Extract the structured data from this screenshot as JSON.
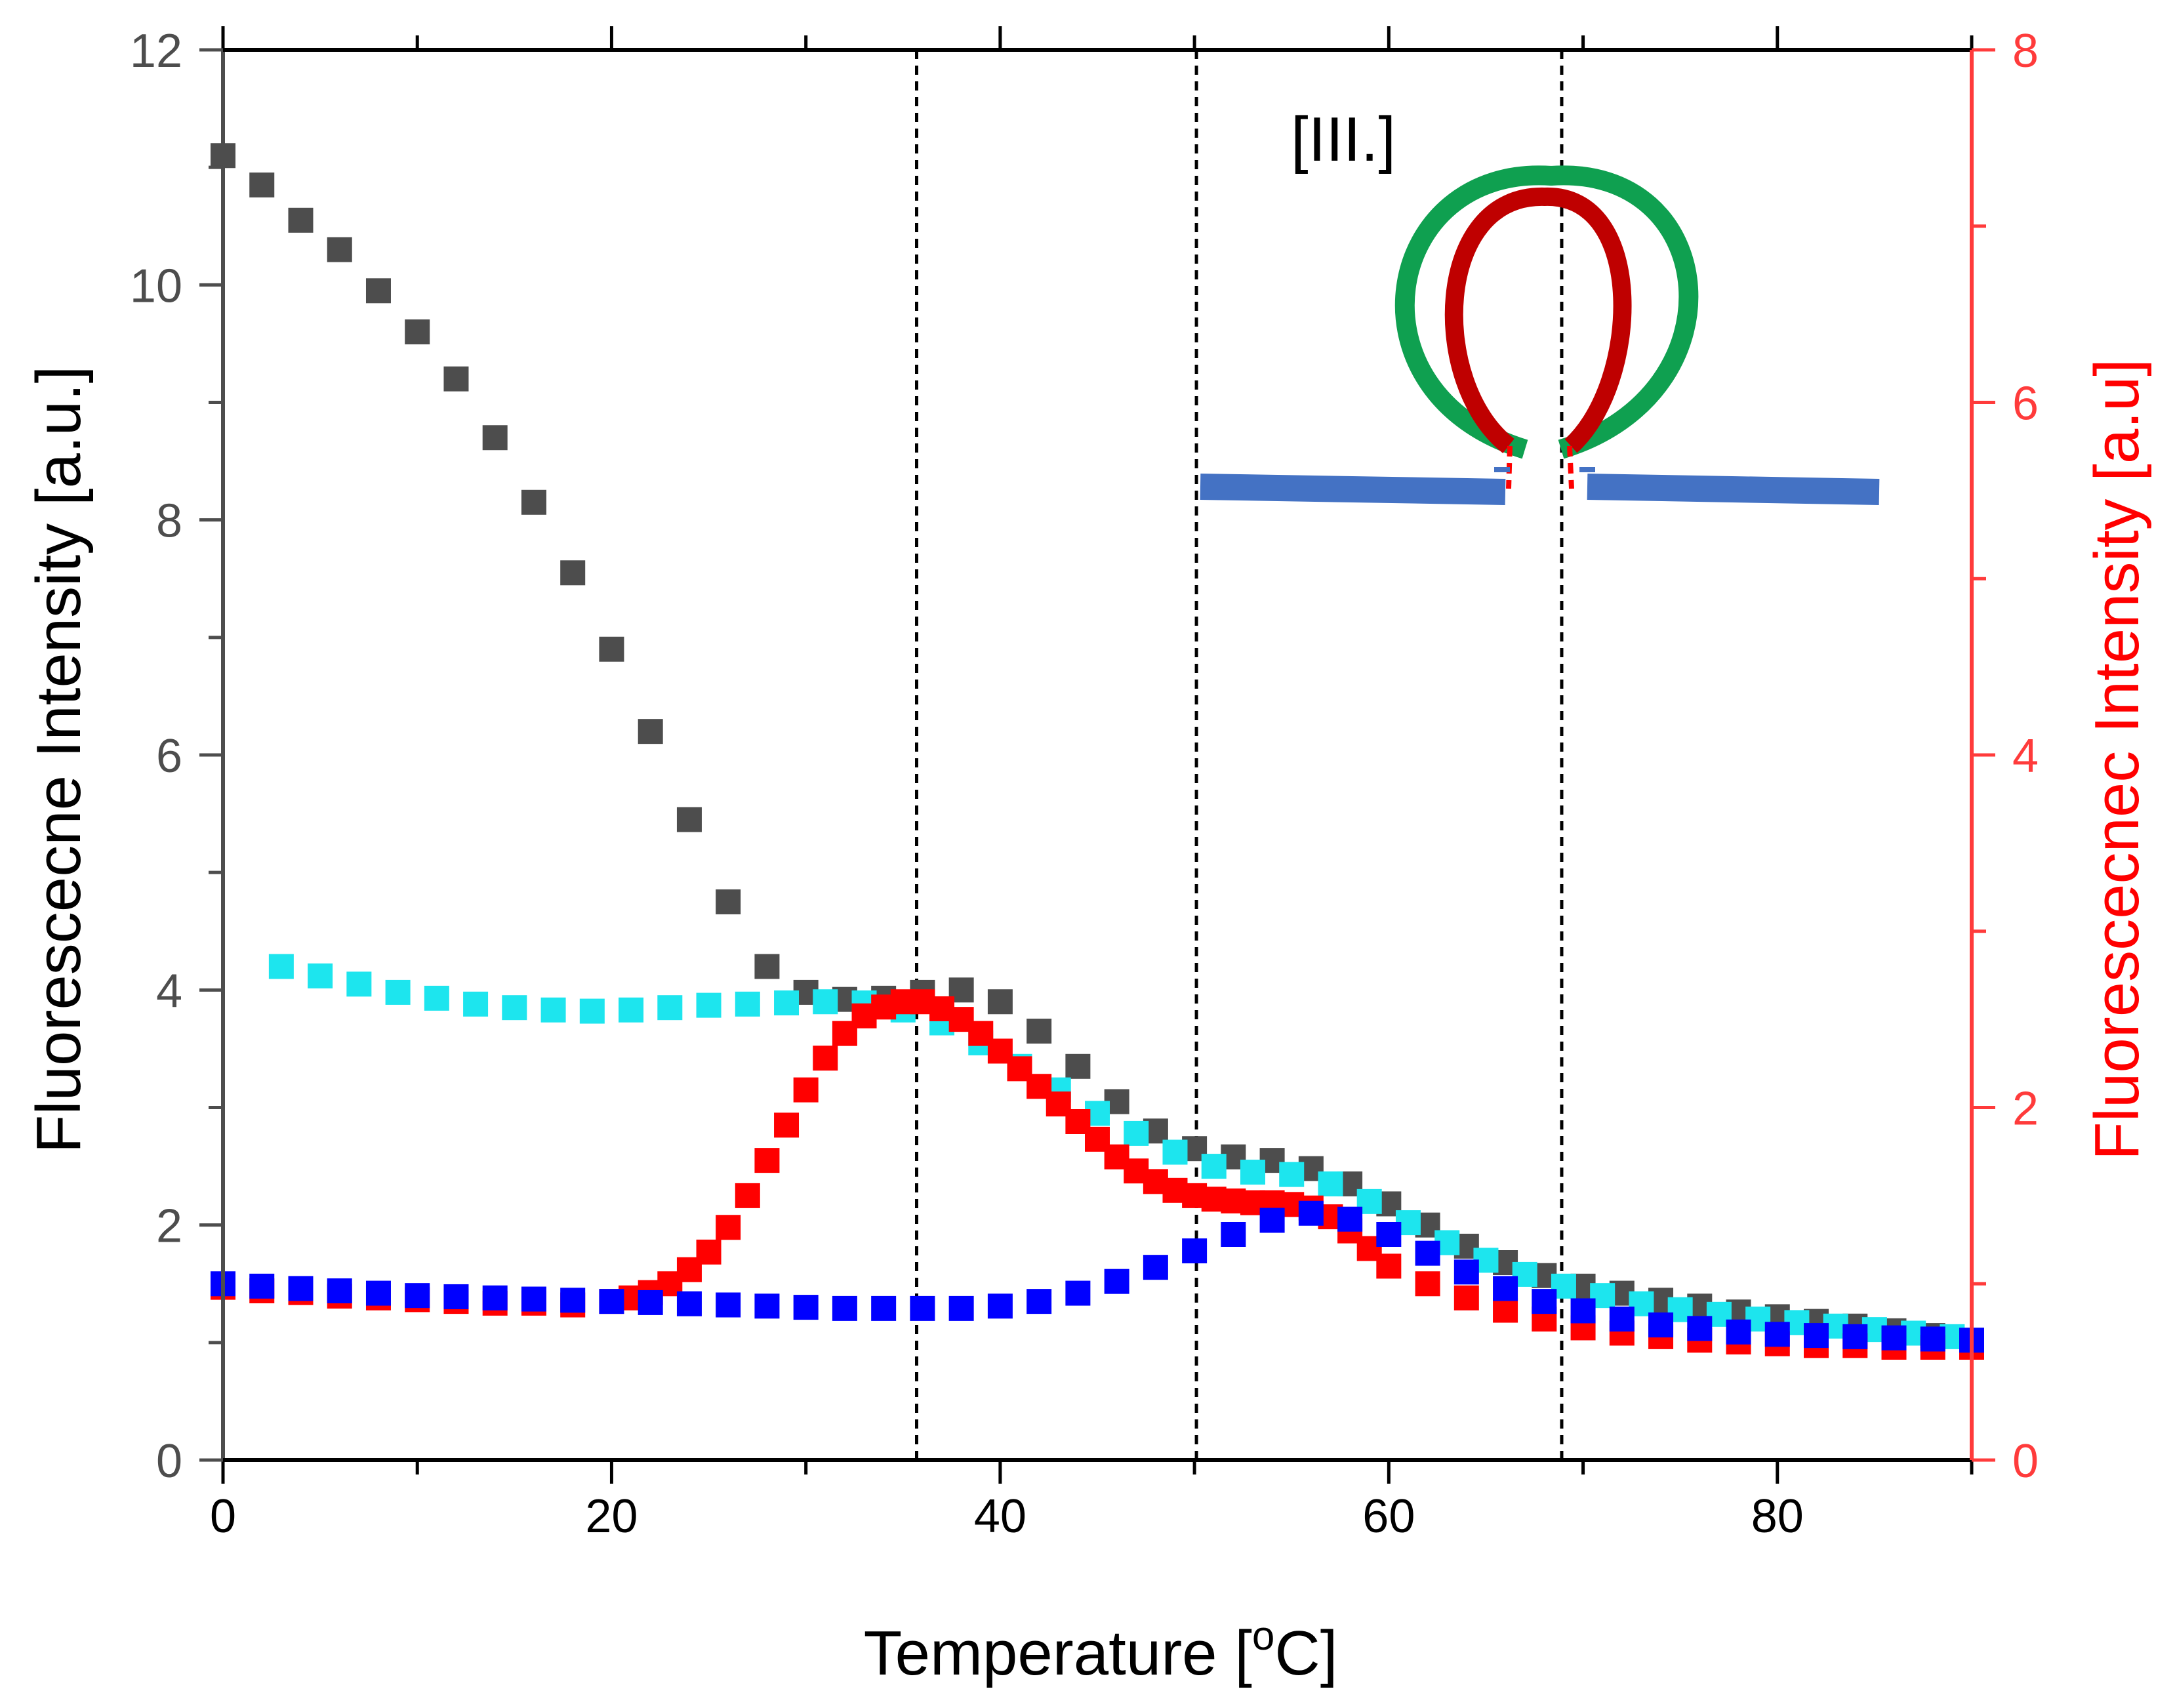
{
  "chart_data": {
    "type": "scatter",
    "xlabel": "Temperature [°C]",
    "xlabel_parts": {
      "main": "Temperature [",
      "sup": "o",
      "rest": "C]"
    },
    "ylabel": "Fluorescecne Intensity [a.u.]",
    "y2label": "Fluorescecnec Intensity  [a.u]",
    "xlim": [
      0,
      90
    ],
    "ylim": [
      0,
      12
    ],
    "y2lim": [
      0,
      8
    ],
    "x_ticks": [
      "0",
      "20",
      "40",
      "60",
      "80"
    ],
    "y_ticks": [
      "0",
      "2",
      "4",
      "6",
      "8",
      "10",
      "12"
    ],
    "y2_ticks": [
      "0",
      "2",
      "4",
      "6",
      "8"
    ],
    "grid": false,
    "legend": "none",
    "annotation": "[III.]",
    "vlines": [
      35.7,
      50.1,
      68.9
    ],
    "series": [
      {
        "name": "black",
        "color": "#4d4d4d",
        "axis": "left",
        "x": [
          0,
          2,
          4,
          6,
          8,
          10,
          12,
          14,
          16,
          18,
          20,
          22,
          24,
          26,
          28,
          30,
          32,
          34,
          36,
          38,
          40,
          42,
          44,
          46,
          48,
          50,
          52,
          54,
          56,
          58,
          60,
          62,
          64,
          66,
          68,
          70,
          72,
          74,
          76,
          78,
          80,
          82,
          84,
          86,
          88,
          90
        ],
        "y": [
          11.1,
          10.85,
          10.55,
          10.3,
          9.95,
          9.6,
          9.2,
          8.7,
          8.15,
          7.55,
          6.9,
          6.2,
          5.45,
          4.75,
          4.2,
          3.98,
          3.92,
          3.93,
          3.98,
          4.0,
          3.9,
          3.65,
          3.35,
          3.05,
          2.8,
          2.65,
          2.58,
          2.55,
          2.48,
          2.35,
          2.18,
          2.0,
          1.82,
          1.68,
          1.57,
          1.48,
          1.42,
          1.36,
          1.31,
          1.26,
          1.22,
          1.18,
          1.14,
          1.1,
          1.06,
          1.02
        ]
      },
      {
        "name": "cyan",
        "color": "#1de5ee",
        "axis": "left",
        "x": [
          3,
          5,
          7,
          9,
          11,
          13,
          15,
          17,
          19,
          21,
          23,
          25,
          27,
          29,
          31,
          33,
          35,
          37,
          39,
          41,
          43,
          45,
          47,
          49,
          51,
          53,
          55,
          57,
          59,
          61,
          63,
          65,
          67,
          69,
          71,
          73,
          75,
          77,
          79,
          81,
          83,
          85,
          87,
          89
        ],
        "y": [
          4.2,
          4.12,
          4.05,
          3.98,
          3.93,
          3.88,
          3.85,
          3.83,
          3.82,
          3.83,
          3.85,
          3.87,
          3.88,
          3.89,
          3.9,
          3.89,
          3.83,
          3.72,
          3.55,
          3.35,
          3.15,
          2.95,
          2.78,
          2.62,
          2.5,
          2.45,
          2.43,
          2.35,
          2.2,
          2.02,
          1.85,
          1.7,
          1.58,
          1.48,
          1.4,
          1.33,
          1.28,
          1.24,
          1.2,
          1.17,
          1.14,
          1.11,
          1.08,
          1.05
        ]
      },
      {
        "name": "red",
        "color": "#ff0000",
        "axis": "right",
        "x": [
          0,
          2,
          4,
          6,
          8,
          10,
          12,
          14,
          16,
          18,
          20,
          21,
          22,
          23,
          24,
          25,
          26,
          27,
          28,
          29,
          30,
          31,
          32,
          33,
          34,
          35,
          36,
          37,
          38,
          39,
          40,
          41,
          42,
          43,
          44,
          45,
          46,
          47,
          48,
          49,
          50,
          51,
          52,
          53,
          54,
          55,
          56,
          57,
          58,
          59,
          60,
          62,
          64,
          66,
          68,
          70,
          72,
          74,
          76,
          78,
          80,
          82,
          84,
          86,
          88,
          90
        ],
        "y": [
          0.98,
          0.96,
          0.95,
          0.93,
          0.92,
          0.91,
          0.9,
          0.89,
          0.89,
          0.88,
          0.9,
          0.92,
          0.95,
          1.0,
          1.08,
          1.18,
          1.32,
          1.5,
          1.7,
          1.9,
          2.1,
          2.28,
          2.42,
          2.52,
          2.57,
          2.6,
          2.6,
          2.56,
          2.5,
          2.42,
          2.32,
          2.22,
          2.12,
          2.02,
          1.92,
          1.82,
          1.72,
          1.64,
          1.58,
          1.53,
          1.5,
          1.48,
          1.47,
          1.46,
          1.46,
          1.45,
          1.43,
          1.38,
          1.3,
          1.2,
          1.1,
          1.0,
          0.92,
          0.85,
          0.8,
          0.75,
          0.72,
          0.7,
          0.68,
          0.67,
          0.66,
          0.65,
          0.65,
          0.64,
          0.64,
          0.64
        ]
      },
      {
        "name": "blue",
        "color": "#0000ff",
        "axis": "left",
        "x": [
          0,
          2,
          4,
          6,
          8,
          10,
          12,
          14,
          16,
          18,
          20,
          22,
          24,
          26,
          28,
          30,
          32,
          34,
          36,
          38,
          40,
          42,
          44,
          46,
          48,
          50,
          52,
          54,
          56,
          58,
          60,
          62,
          64,
          66,
          68,
          70,
          72,
          74,
          76,
          78,
          80,
          82,
          84,
          86,
          88,
          90
        ],
        "y": [
          1.5,
          1.48,
          1.46,
          1.44,
          1.42,
          1.4,
          1.39,
          1.38,
          1.37,
          1.36,
          1.35,
          1.34,
          1.33,
          1.32,
          1.31,
          1.3,
          1.29,
          1.29,
          1.29,
          1.29,
          1.31,
          1.35,
          1.42,
          1.52,
          1.64,
          1.78,
          1.92,
          2.04,
          2.1,
          2.05,
          1.92,
          1.76,
          1.6,
          1.46,
          1.35,
          1.27,
          1.2,
          1.15,
          1.12,
          1.09,
          1.07,
          1.06,
          1.05,
          1.04,
          1.03,
          1.02
        ]
      }
    ]
  }
}
